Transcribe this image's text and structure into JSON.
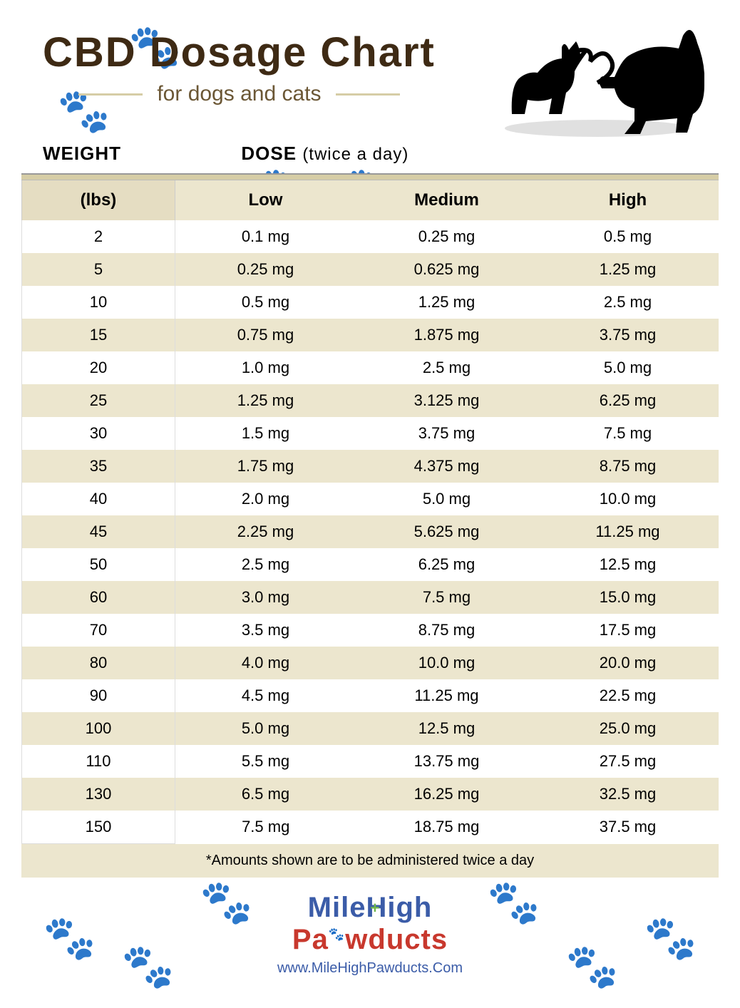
{
  "colors": {
    "title": "#3e2a14",
    "subtitle": "#6b5735",
    "accent_bar": "#d6cda6",
    "row_stripe": "#ece6ce",
    "header_stripe": "#e5ddc2",
    "text": "#1a1a1a",
    "logo_blue": "#3b5ca8",
    "logo_red": "#c8382d",
    "logo_green": "#6fb64a",
    "url": "#3b5ca8",
    "paw_bg": "#f0ead6"
  },
  "header": {
    "title": "CBD Dosage Chart",
    "subtitle": "for dogs and cats"
  },
  "column_labels": {
    "weight": "WEIGHT",
    "dose": "DOSE",
    "dose_note": "(twice a day)"
  },
  "table": {
    "headers": {
      "lbs": "(lbs)",
      "low": "Low",
      "medium": "Medium",
      "high": "High"
    },
    "rows": [
      {
        "w": "2",
        "l": "0.1 mg",
        "m": "0.25 mg",
        "h": "0.5 mg"
      },
      {
        "w": "5",
        "l": "0.25 mg",
        "m": "0.625 mg",
        "h": "1.25 mg"
      },
      {
        "w": "10",
        "l": "0.5 mg",
        "m": "1.25 mg",
        "h": "2.5 mg"
      },
      {
        "w": "15",
        "l": "0.75 mg",
        "m": "1.875 mg",
        "h": "3.75 mg"
      },
      {
        "w": "20",
        "l": "1.0 mg",
        "m": "2.5 mg",
        "h": "5.0 mg"
      },
      {
        "w": "25",
        "l": "1.25 mg",
        "m": "3.125 mg",
        "h": "6.25 mg"
      },
      {
        "w": "30",
        "l": "1.5 mg",
        "m": "3.75 mg",
        "h": "7.5 mg"
      },
      {
        "w": "35",
        "l": "1.75 mg",
        "m": "4.375 mg",
        "h": "8.75 mg"
      },
      {
        "w": "40",
        "l": "2.0 mg",
        "m": "5.0 mg",
        "h": "10.0 mg"
      },
      {
        "w": "45",
        "l": "2.25 mg",
        "m": "5.625 mg",
        "h": "11.25 mg"
      },
      {
        "w": "50",
        "l": "2.5 mg",
        "m": "6.25 mg",
        "h": "12.5 mg"
      },
      {
        "w": "60",
        "l": "3.0 mg",
        "m": "7.5 mg",
        "h": "15.0 mg"
      },
      {
        "w": "70",
        "l": "3.5 mg",
        "m": "8.75 mg",
        "h": "17.5 mg"
      },
      {
        "w": "80",
        "l": "4.0 mg",
        "m": "10.0 mg",
        "h": "20.0 mg"
      },
      {
        "w": "90",
        "l": "4.5 mg",
        "m": "11.25 mg",
        "h": "22.5 mg"
      },
      {
        "w": "100",
        "l": "5.0 mg",
        "m": "12.5 mg",
        "h": "25.0 mg"
      },
      {
        "w": "110",
        "l": "5.5 mg",
        "m": "13.75 mg",
        "h": "27.5 mg"
      },
      {
        "w": "130",
        "l": "6.5 mg",
        "m": "16.25 mg",
        "h": "32.5 mg"
      },
      {
        "w": "150",
        "l": "7.5 mg",
        "m": "18.75 mg",
        "h": "37.5 mg"
      }
    ]
  },
  "footnote": "*Amounts shown are to be administered twice a day",
  "logo": {
    "line1_a": "Mile",
    "line1_b": "igh",
    "line2_a": "P",
    "line2_b": "wducts",
    "url": "www.MileHighPawducts.Com"
  }
}
